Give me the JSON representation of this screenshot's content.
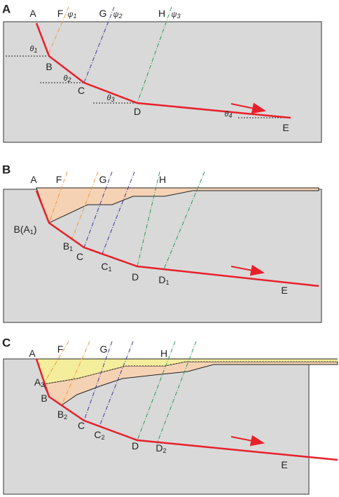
{
  "panels": [
    {
      "label": "A",
      "points": [
        {
          "text": "A"
        },
        {
          "text": "F"
        },
        {
          "text": "G"
        },
        {
          "text": "H"
        },
        {
          "text": "B"
        },
        {
          "text": "C"
        },
        {
          "text": "D"
        },
        {
          "text": "E"
        }
      ],
      "angles": [
        {
          "text": "θ",
          "sub": "1"
        },
        {
          "text": "θ",
          "sub": "2"
        },
        {
          "text": "θ",
          "sub": "3"
        },
        {
          "text": "θ",
          "sub": "4"
        },
        {
          "text": "ψ",
          "sub": "1"
        },
        {
          "text": "ψ",
          "sub": "2"
        },
        {
          "text": "ψ",
          "sub": "3"
        }
      ]
    },
    {
      "label": "B",
      "points": [
        {
          "text": "A"
        },
        {
          "text": "F"
        },
        {
          "text": "G"
        },
        {
          "text": "H"
        },
        {
          "text": "B(A",
          "sub": "1",
          "after": ")"
        },
        {
          "text": "B",
          "sub": "1"
        },
        {
          "text": "C"
        },
        {
          "text": "C",
          "sub": "1"
        },
        {
          "text": "D"
        },
        {
          "text": "D",
          "sub": "1"
        },
        {
          "text": "E"
        }
      ]
    },
    {
      "label": "C",
      "points": [
        {
          "text": "A"
        },
        {
          "text": "F"
        },
        {
          "text": "G"
        },
        {
          "text": "H"
        },
        {
          "text": "A",
          "sub": "2"
        },
        {
          "text": "B"
        },
        {
          "text": "B",
          "sub": "2"
        },
        {
          "text": "C"
        },
        {
          "text": "C",
          "sub": "2"
        },
        {
          "text": "D"
        },
        {
          "text": "D",
          "sub": "2"
        },
        {
          "text": "E"
        }
      ]
    }
  ]
}
